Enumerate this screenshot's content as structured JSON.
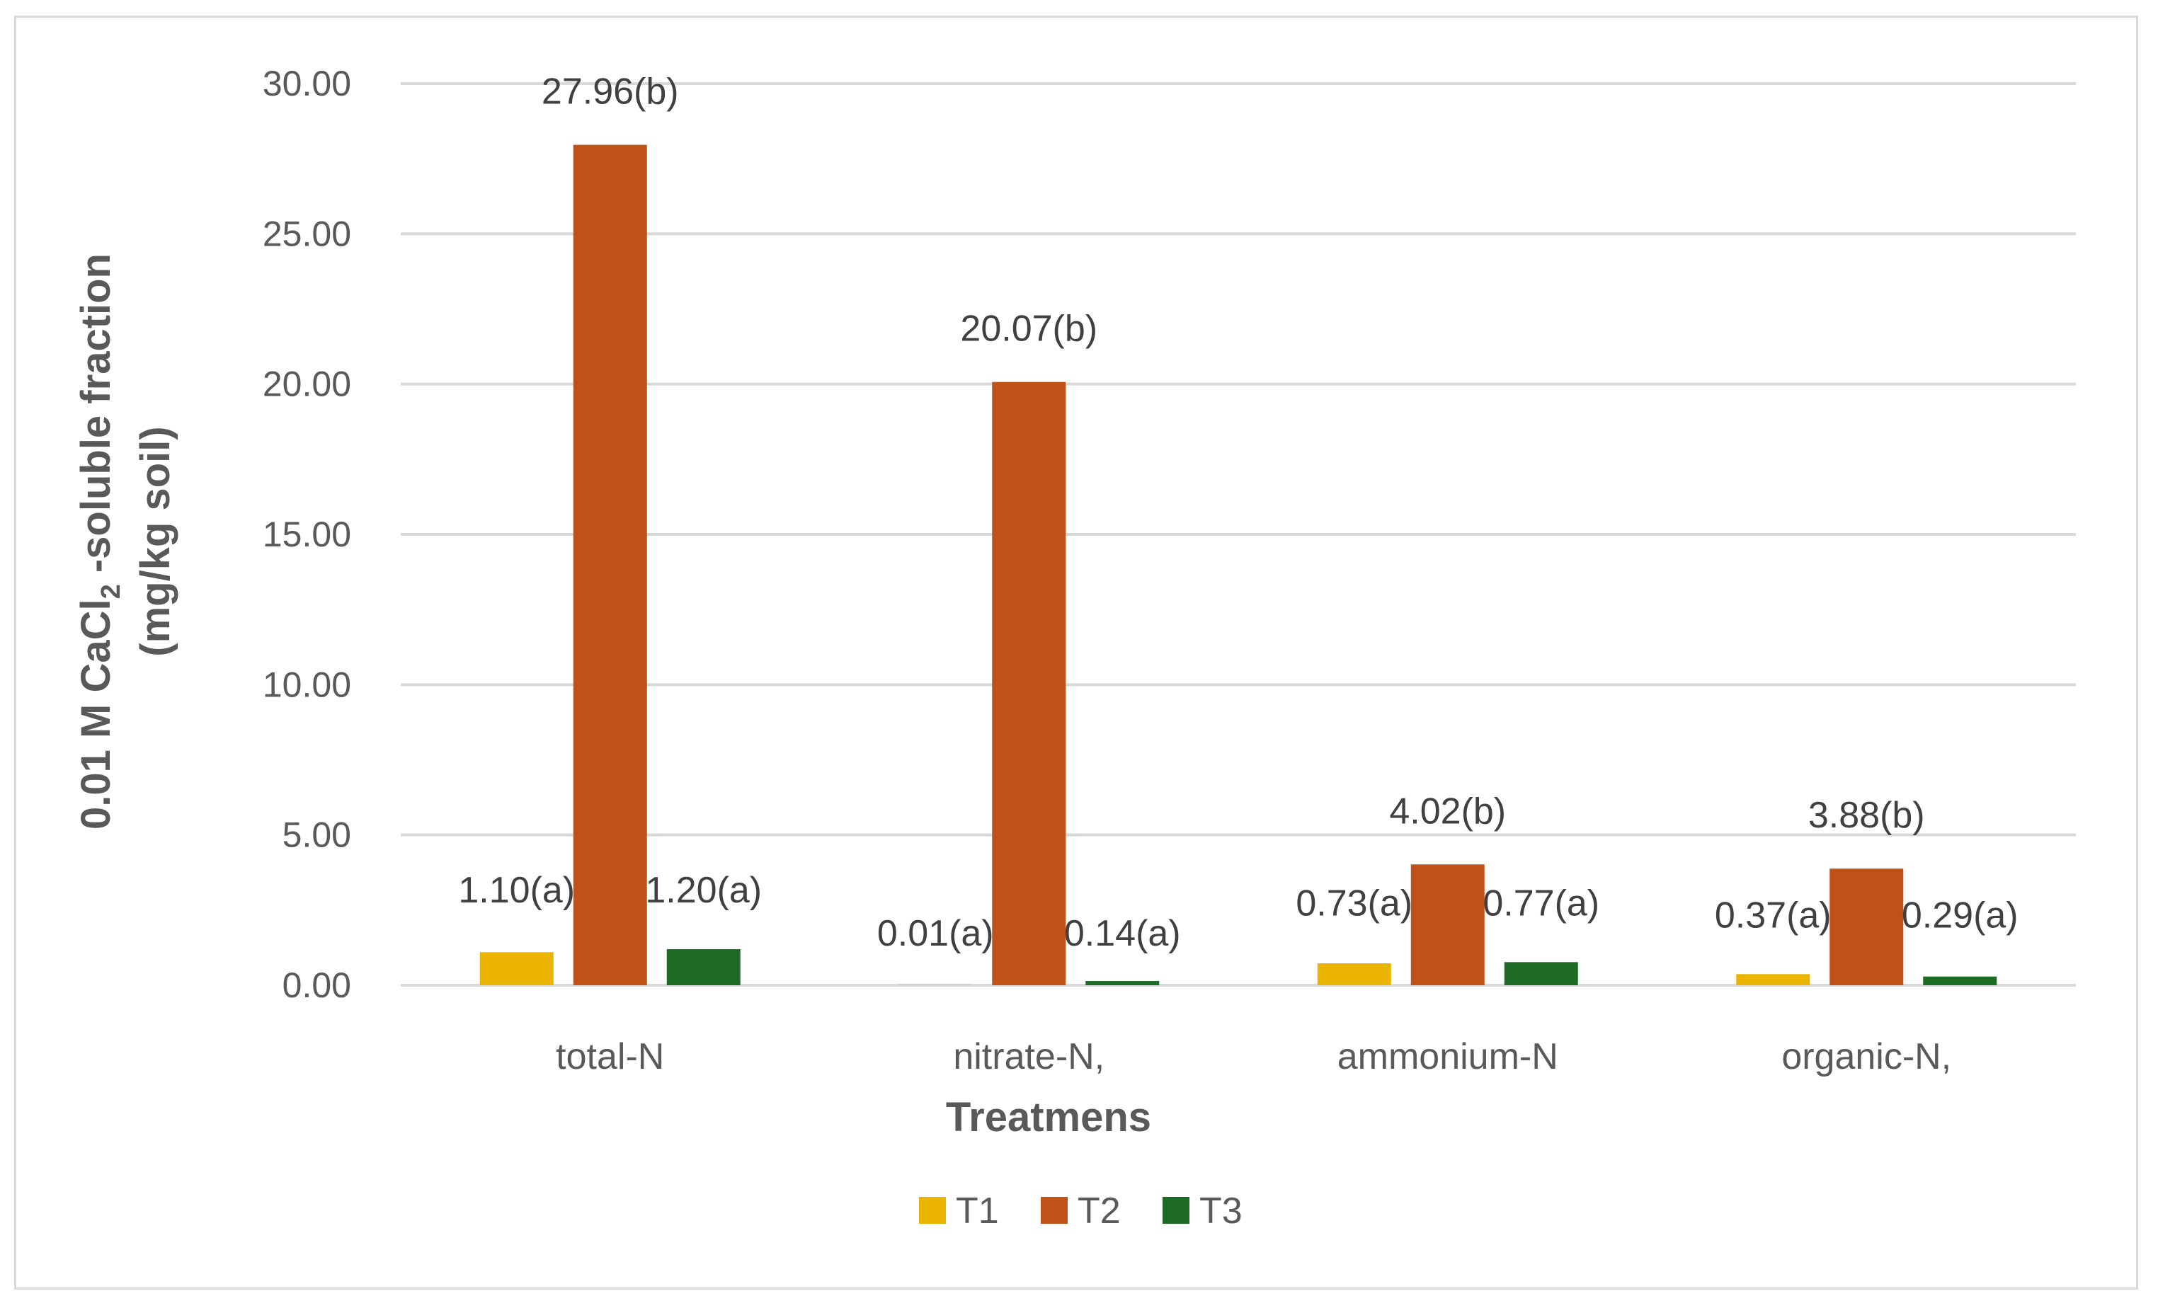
{
  "chart_data": {
    "type": "bar",
    "categories": [
      "total-N",
      "nitrate-N,",
      "ammonium-N",
      "organic-N,"
    ],
    "series": [
      {
        "name": "T1",
        "color": "#EBB400",
        "values": [
          1.1,
          0.01,
          0.73,
          0.37
        ],
        "labels": [
          "1.10(a)",
          "0.01(a)",
          "0.73(a)",
          "0.37(a)"
        ]
      },
      {
        "name": "T2",
        "color": "#C05117",
        "values": [
          27.96,
          20.07,
          4.02,
          3.88
        ],
        "labels": [
          "27.96(b)",
          "20.07(b)",
          "4.02(b)",
          "3.88(b)"
        ]
      },
      {
        "name": "T3",
        "color": "#1E6B26",
        "values": [
          1.2,
          0.14,
          0.77,
          0.29
        ],
        "labels": [
          "1.20(a)",
          "0.14(a)",
          "0.77(a)",
          "0.29(a)"
        ]
      }
    ],
    "xlabel": "Treatmens",
    "ylabel": {
      "line1_prefix": "0.01 M CaCl",
      "line1_sub": "2",
      "line1_suffix": " -soluble fraction",
      "line2": "(mg/kg soil)"
    },
    "ylim": [
      0,
      30
    ],
    "yticks": [
      "0.00",
      "5.00",
      "10.00",
      "15.00",
      "20.00",
      "25.00",
      "30.00"
    ],
    "grid": true,
    "legend_position": "bottom",
    "gridline_color": "#d9d9d9"
  }
}
